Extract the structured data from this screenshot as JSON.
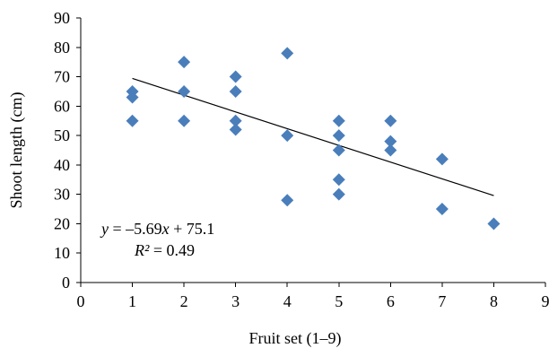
{
  "chart_data": {
    "type": "scatter",
    "xlabel": "Fruit set (1–9)",
    "ylabel": "Shoot length (cm)",
    "xlim": [
      0,
      9
    ],
    "ylim": [
      0,
      90
    ],
    "xticks": [
      0,
      1,
      2,
      3,
      4,
      5,
      6,
      7,
      8,
      9
    ],
    "yticks": [
      0,
      10,
      20,
      30,
      40,
      50,
      60,
      70,
      80,
      90
    ],
    "grid": false,
    "series": [
      {
        "points": [
          {
            "x": 1,
            "y": 65
          },
          {
            "x": 1,
            "y": 63
          },
          {
            "x": 1,
            "y": 55
          },
          {
            "x": 2,
            "y": 75
          },
          {
            "x": 2,
            "y": 65
          },
          {
            "x": 2,
            "y": 55
          },
          {
            "x": 3,
            "y": 70
          },
          {
            "x": 3,
            "y": 65
          },
          {
            "x": 3,
            "y": 55
          },
          {
            "x": 3,
            "y": 52
          },
          {
            "x": 4,
            "y": 78
          },
          {
            "x": 4,
            "y": 50
          },
          {
            "x": 4,
            "y": 28
          },
          {
            "x": 5,
            "y": 55
          },
          {
            "x": 5,
            "y": 50
          },
          {
            "x": 5,
            "y": 45
          },
          {
            "x": 5,
            "y": 35
          },
          {
            "x": 5,
            "y": 30
          },
          {
            "x": 6,
            "y": 55
          },
          {
            "x": 6,
            "y": 48
          },
          {
            "x": 6,
            "y": 45
          },
          {
            "x": 7,
            "y": 42
          },
          {
            "x": 7,
            "y": 25
          },
          {
            "x": 8,
            "y": 20
          }
        ],
        "color": "#4a7ebb",
        "marker": "diamond"
      }
    ],
    "trendline": {
      "type": "linear",
      "slope": -5.69,
      "intercept": 75.1,
      "x_range": [
        1,
        8
      ],
      "color": "#000000"
    },
    "annotations": {
      "equation": {
        "y_part": "y",
        "equals_part": " = –5.69",
        "x_part": "x",
        "rest_part": " + 75.1"
      },
      "r_squared": {
        "label": "R²",
        "value_part": " = 0.49"
      }
    }
  }
}
